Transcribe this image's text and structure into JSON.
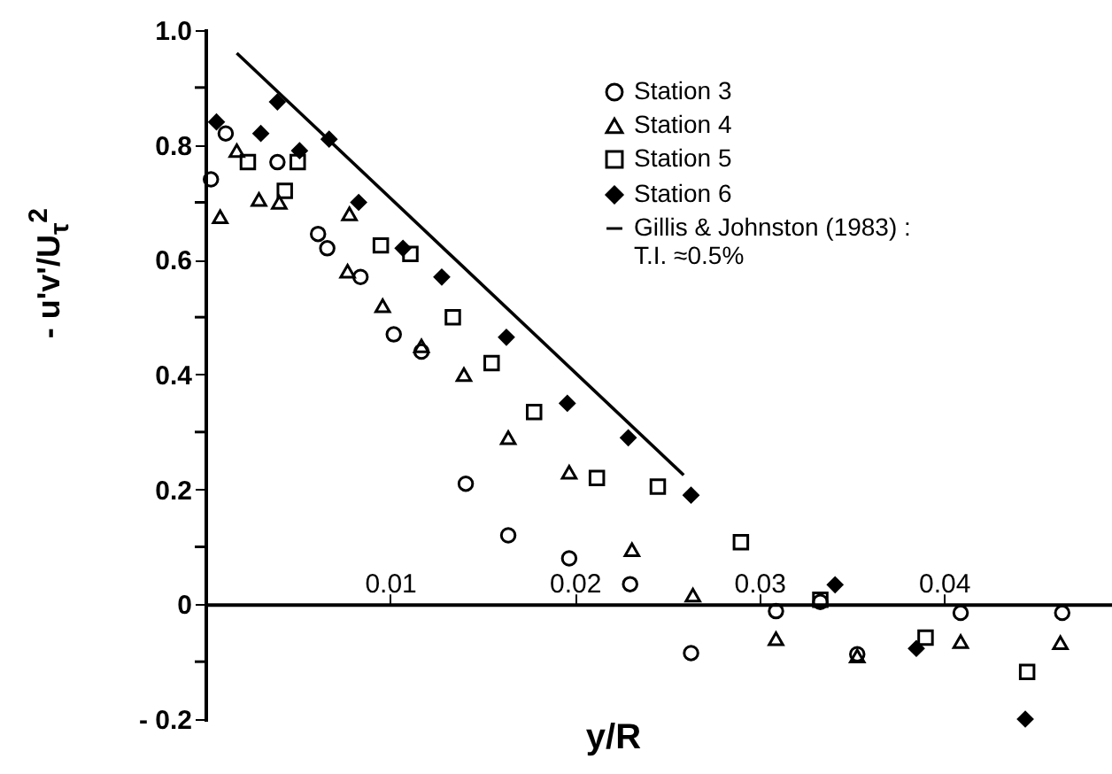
{
  "chart_data": {
    "type": "scatter",
    "xlabel": "y/R",
    "ylabel": "- u'v'/U$_{τ}$$^{2}$",
    "xlim": [
      0,
      0.049
    ],
    "ylim": [
      -0.2,
      1.0
    ],
    "xticks": [
      0.01,
      0.02,
      0.03,
      0.04
    ],
    "yticks": [
      {
        "value": -0.2,
        "label": "- 0.2"
      },
      {
        "value": -0.1,
        "label": null
      },
      0,
      {
        "value": 0.1,
        "label": null
      },
      0.2,
      {
        "value": 0.3,
        "label": null
      },
      0.4,
      {
        "value": 0.5,
        "label": null
      },
      0.6,
      {
        "value": 0.7,
        "label": null
      },
      0.8,
      {
        "value": 0.9,
        "label": null
      },
      {
        "value": 1,
        "label": "1.0"
      }
    ],
    "grid": false,
    "legend": "top right",
    "series": [
      {
        "name": "Station 3",
        "color": "#000000",
        "marker": "circle",
        "x": [
          0.0003,
          0.0011,
          0.0039,
          0.0061,
          0.0066,
          0.0084,
          0.0102,
          0.0117,
          0.0141,
          0.0164,
          0.0197,
          0.023,
          0.0263,
          0.0309,
          0.0333,
          0.0353,
          0.0409,
          0.0464
        ],
        "values": [
          0.74,
          0.82,
          0.77,
          0.645,
          0.62,
          0.57,
          0.47,
          0.44,
          0.21,
          0.12,
          0.08,
          0.035,
          -0.085,
          -0.012,
          0.004,
          -0.087,
          -0.015,
          -0.015
        ]
      },
      {
        "name": "Station 4",
        "color": "#000000",
        "marker": "triangle",
        "x": [
          0.0008,
          0.0017,
          0.0029,
          0.004,
          0.0078,
          0.0077,
          0.0096,
          0.0117,
          0.014,
          0.0164,
          0.0197,
          0.0231,
          0.0264,
          0.0309,
          0.0353,
          0.0409,
          0.0463
        ],
        "values": [
          0.675,
          0.79,
          0.705,
          0.7,
          0.68,
          0.58,
          0.52,
          0.45,
          0.4,
          0.29,
          0.23,
          0.095,
          0.016,
          -0.06,
          -0.09,
          -0.065,
          -0.067
        ]
      },
      {
        "name": "Station 5",
        "color": "#000000",
        "marker": "square",
        "x": [
          0.0023,
          0.0043,
          0.005,
          0.0095,
          0.0111,
          0.0134,
          0.0155,
          0.0178,
          0.0212,
          0.0245,
          0.029,
          0.0333,
          0.039,
          0.0445
        ],
        "values": [
          0.77,
          0.72,
          0.77,
          0.625,
          0.61,
          0.5,
          0.42,
          0.335,
          0.22,
          0.205,
          0.108,
          0.008,
          -0.058,
          -0.118
        ]
      },
      {
        "name": "Station 6",
        "color": "#000000",
        "marker": "diamond",
        "x": [
          0.0006,
          0.003,
          0.0039,
          0.0051,
          0.0067,
          0.0083,
          0.0107,
          0.0128,
          0.0163,
          0.0196,
          0.0229,
          0.0263,
          0.0341,
          0.0385,
          0.0444
        ],
        "values": [
          0.84,
          0.82,
          0.875,
          0.79,
          0.81,
          0.7,
          0.62,
          0.57,
          0.465,
          0.35,
          0.29,
          0.19,
          0.034,
          -0.077,
          -0.2
        ]
      },
      {
        "name": "Gillis & Johnston (1983) :\nT.I. ≈0.5%",
        "type": "line",
        "color": "#000000",
        "line_style": "solid",
        "x": [
          0.0017,
          0.0259
        ],
        "values": [
          0.96,
          0.225
        ]
      }
    ]
  }
}
